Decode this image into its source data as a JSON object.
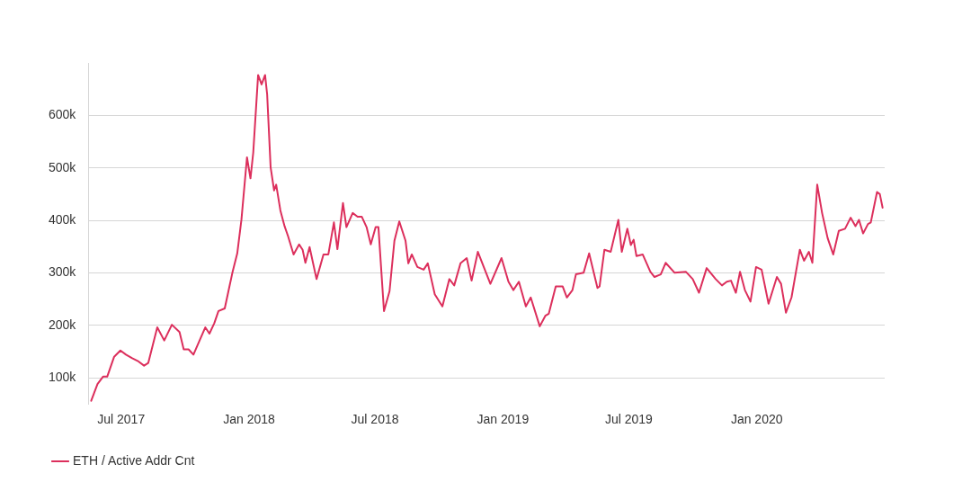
{
  "chart_data": {
    "type": "line",
    "x": [
      "2017-05-19",
      "2017-05-28",
      "2017-06-05",
      "2017-06-11",
      "2017-06-21",
      "2017-06-30",
      "2017-07-08",
      "2017-07-17",
      "2017-07-26",
      "2017-08-03",
      "2017-08-09",
      "2017-08-22",
      "2017-09-01",
      "2017-09-12",
      "2017-09-23",
      "2017-09-29",
      "2017-10-06",
      "2017-10-13",
      "2017-10-30",
      "2017-11-05",
      "2017-11-12",
      "2017-11-18",
      "2017-11-27",
      "2017-12-08",
      "2017-12-15",
      "2017-12-21",
      "2017-12-29",
      "2018-01-03",
      "2018-01-07",
      "2018-01-14",
      "2018-01-19",
      "2018-01-24",
      "2018-01-27",
      "2018-02-01",
      "2018-02-06",
      "2018-02-09",
      "2018-02-15",
      "2018-02-21",
      "2018-02-26",
      "2018-03-06",
      "2018-03-14",
      "2018-03-19",
      "2018-03-23",
      "2018-03-29",
      "2018-04-08",
      "2018-04-18",
      "2018-04-25",
      "2018-05-03",
      "2018-05-08",
      "2018-05-16",
      "2018-05-21",
      "2018-05-30",
      "2018-06-06",
      "2018-06-12",
      "2018-06-19",
      "2018-06-25",
      "2018-07-02",
      "2018-07-06",
      "2018-07-14",
      "2018-07-22",
      "2018-07-29",
      "2018-08-05",
      "2018-08-14",
      "2018-08-18",
      "2018-08-23",
      "2018-08-31",
      "2018-09-09",
      "2018-09-15",
      "2018-09-25",
      "2018-10-06",
      "2018-10-16",
      "2018-10-23",
      "2018-11-01",
      "2018-11-10",
      "2018-11-17",
      "2018-11-26",
      "2018-12-06",
      "2018-12-14",
      "2018-12-30",
      "2019-01-09",
      "2019-01-16",
      "2019-01-24",
      "2019-02-03",
      "2019-02-10",
      "2019-02-23",
      "2019-03-03",
      "2019-03-08",
      "2019-03-18",
      "2019-03-28",
      "2019-04-03",
      "2019-04-11",
      "2019-04-16",
      "2019-04-27",
      "2019-05-05",
      "2019-05-17",
      "2019-05-20",
      "2019-05-27",
      "2019-06-05",
      "2019-06-16",
      "2019-06-21",
      "2019-06-29",
      "2019-07-04",
      "2019-07-08",
      "2019-07-12",
      "2019-07-21",
      "2019-08-01",
      "2019-08-07",
      "2019-08-16",
      "2019-08-23",
      "2019-09-05",
      "2019-09-21",
      "2019-10-01",
      "2019-10-10",
      "2019-10-21",
      "2019-11-03",
      "2019-11-12",
      "2019-11-19",
      "2019-11-25",
      "2019-12-02",
      "2019-12-08",
      "2019-12-15",
      "2019-12-23",
      "2019-12-31",
      "2020-01-08",
      "2020-01-18",
      "2020-01-30",
      "2020-02-05",
      "2020-02-12",
      "2020-02-20",
      "2020-03-03",
      "2020-03-09",
      "2020-03-16",
      "2020-03-21",
      "2020-03-28",
      "2020-04-04",
      "2020-04-12",
      "2020-04-20",
      "2020-04-28",
      "2020-05-07",
      "2020-05-15",
      "2020-05-22",
      "2020-05-27",
      "2020-06-02",
      "2020-06-09",
      "2020-06-13",
      "2020-06-22",
      "2020-06-26",
      "2020-06-30"
    ],
    "series": [
      {
        "name": "ETH / Active Addr Cnt",
        "color": "#dc2f5c",
        "values": [
          56000,
          88000,
          102000,
          102000,
          140000,
          152000,
          144000,
          137000,
          131000,
          123000,
          128000,
          196000,
          171000,
          201000,
          187000,
          154000,
          154000,
          144000,
          196000,
          184000,
          204000,
          227000,
          232000,
          300000,
          337000,
          401000,
          520000,
          480000,
          529000,
          677000,
          659000,
          677000,
          640000,
          501000,
          457000,
          468000,
          419000,
          389000,
          370000,
          335000,
          354000,
          344000,
          319000,
          349000,
          288000,
          335000,
          335000,
          396000,
          345000,
          433000,
          387000,
          414000,
          407000,
          407000,
          387000,
          354000,
          387000,
          387000,
          227000,
          265000,
          361000,
          398000,
          361000,
          318000,
          335000,
          311000,
          306000,
          318000,
          259000,
          236000,
          288000,
          276000,
          318000,
          328000,
          285000,
          340000,
          306000,
          279000,
          328000,
          283000,
          267000,
          283000,
          236000,
          253000,
          198000,
          218000,
          222000,
          274000,
          274000,
          253000,
          267000,
          297000,
          300000,
          337000,
          271000,
          274000,
          344000,
          340000,
          401000,
          340000,
          384000,
          353000,
          363000,
          332000,
          335000,
          302000,
          292000,
          297000,
          319000,
          300000,
          302000,
          288000,
          262000,
          309000,
          288000,
          276000,
          283000,
          285000,
          262000,
          302000,
          267000,
          245000,
          311000,
          306000,
          241000,
          292000,
          279000,
          224000,
          253000,
          344000,
          323000,
          340000,
          319000,
          468000,
          414000,
          366000,
          335000,
          380000,
          384000,
          405000,
          389000,
          401000,
          375000,
          393000,
          396000,
          454000,
          450000,
          424000
        ]
      }
    ],
    "xlim": [
      "2017-05-15",
      "2020-07-03"
    ],
    "xticks": [
      {
        "value": "2017-07-01",
        "label": "Jul 2017"
      },
      {
        "value": "2018-01-01",
        "label": "Jan 2018"
      },
      {
        "value": "2018-07-01",
        "label": "Jul 2018"
      },
      {
        "value": "2019-01-01",
        "label": "Jan 2019"
      },
      {
        "value": "2019-07-01",
        "label": "Jul 2019"
      },
      {
        "value": "2020-01-01",
        "label": "Jan 2020"
      }
    ],
    "ylim": [
      50000,
      700000
    ],
    "yticks": [
      {
        "value": 100000,
        "label": "100k"
      },
      {
        "value": 200000,
        "label": "200k"
      },
      {
        "value": 300000,
        "label": "300k"
      },
      {
        "value": 400000,
        "label": "400k"
      },
      {
        "value": 500000,
        "label": "500k"
      },
      {
        "value": 600000,
        "label": "600k"
      }
    ],
    "grid": "y",
    "legend": "bottom left",
    "marker": "none",
    "line_style": "solid"
  }
}
